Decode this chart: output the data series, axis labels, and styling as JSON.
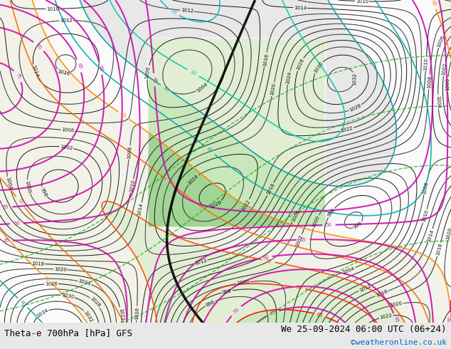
{
  "title_left": "Theta-e 700hPa [hPa] GFS",
  "title_right": "We 25-09-2024 06:00 UTC (06+24)",
  "copyright": "©weatheronline.co.uk",
  "bg_color": "#e8e8e8",
  "map_bg": "#f8f8f0",
  "fig_width": 6.34,
  "fig_height": 4.9,
  "dpi": 100,
  "bottom_bar_color": "#d8d8d8",
  "left_text_color": "#000000",
  "right_text_color": "#000000",
  "copyright_color": "#0066cc"
}
